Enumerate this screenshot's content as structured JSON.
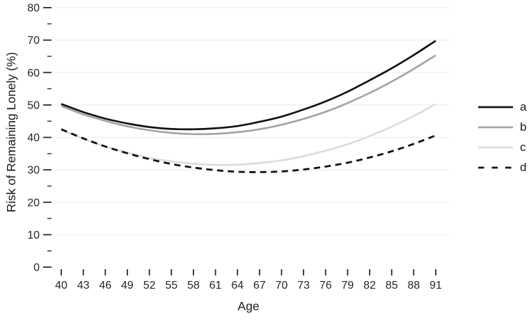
{
  "chart_data": {
    "type": "line",
    "title": "",
    "xlabel": "Age",
    "ylabel": "Risk of Remaining Lonely (%)",
    "x": [
      40,
      43,
      46,
      49,
      52,
      55,
      58,
      61,
      64,
      67,
      70,
      73,
      76,
      79,
      82,
      85,
      88,
      91
    ],
    "xlim": [
      40,
      91
    ],
    "ylim": [
      0,
      80
    ],
    "y_major_ticks": [
      0,
      10,
      20,
      30,
      40,
      50,
      60,
      70,
      80
    ],
    "y_minor_ticks": [
      5,
      15,
      25,
      35,
      45,
      55,
      65,
      75
    ],
    "grid": "horizontal-major-only",
    "legend_position": "right",
    "series": [
      {
        "name": "a",
        "style": "solid",
        "color": "#121212",
        "values": [
          50.3,
          47.8,
          45.8,
          44.3,
          43.2,
          42.6,
          42.5,
          42.8,
          43.5,
          44.8,
          46.4,
          48.6,
          51.1,
          54.1,
          57.6,
          61.3,
          65.4,
          69.8
        ]
      },
      {
        "name": "b",
        "style": "solid",
        "color": "#a4a4a4",
        "values": [
          49.7,
          47.1,
          45.1,
          43.4,
          42.2,
          41.4,
          41.0,
          41.1,
          41.6,
          42.5,
          43.9,
          45.7,
          47.9,
          50.6,
          53.7,
          57.2,
          61.1,
          65.3
        ]
      },
      {
        "name": "c",
        "style": "solid",
        "color": "#dcdcdc",
        "values": [
          42.3,
          39.6,
          37.2,
          35.3,
          33.7,
          32.6,
          31.9,
          31.5,
          31.6,
          32.1,
          32.9,
          34.2,
          35.9,
          37.9,
          40.4,
          43.3,
          46.6,
          50.3
        ]
      },
      {
        "name": "d",
        "style": "dashed",
        "color": "#121212",
        "values": [
          42.5,
          39.7,
          37.2,
          35.1,
          33.3,
          31.8,
          30.7,
          29.9,
          29.4,
          29.3,
          29.5,
          30.1,
          31.0,
          32.2,
          33.8,
          35.7,
          38.0,
          40.6
        ]
      }
    ]
  },
  "colors": {
    "background": "#ffffff",
    "gridline": "#f0f0f0",
    "tick_mark": "#2b2b2b",
    "label_text": "#262626"
  }
}
